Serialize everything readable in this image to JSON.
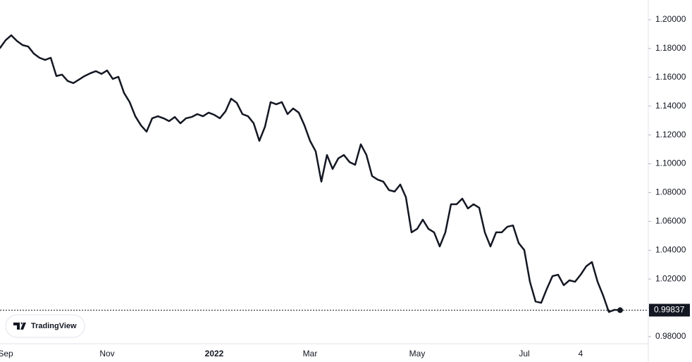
{
  "chart_data": {
    "type": "line",
    "watermark": "TradingView",
    "categories": [
      null,
      "Sep",
      null,
      null,
      null,
      null,
      null,
      null,
      null,
      null,
      null,
      null,
      null,
      null,
      null,
      null,
      null,
      null,
      null,
      "Nov",
      null,
      null,
      null,
      null,
      null,
      null,
      null,
      null,
      null,
      null,
      null,
      null,
      null,
      null,
      null,
      null,
      null,
      null,
      "2022",
      null,
      null,
      null,
      null,
      null,
      null,
      null,
      null,
      null,
      null,
      null,
      null,
      null,
      null,
      null,
      null,
      "Mar",
      null,
      null,
      null,
      null,
      null,
      null,
      null,
      null,
      null,
      null,
      null,
      null,
      null,
      null,
      null,
      null,
      null,
      null,
      "May",
      null,
      null,
      null,
      null,
      null,
      null,
      null,
      null,
      null,
      null,
      null,
      null,
      null,
      null,
      null,
      null,
      null,
      null,
      "Jul",
      null,
      null,
      null,
      null,
      null,
      null,
      null,
      null,
      null,
      "4",
      null,
      null,
      null,
      null,
      null,
      null,
      null
    ],
    "series": [
      {
        "color": "#131722",
        "values": [
          1.1804,
          1.1858,
          1.1892,
          1.1853,
          1.1824,
          1.1814,
          1.1765,
          1.1736,
          1.1721,
          1.1736,
          1.1609,
          1.1619,
          1.1575,
          1.156,
          1.1584,
          1.1609,
          1.1628,
          1.1643,
          1.1624,
          1.1648,
          1.1589,
          1.1604,
          1.1492,
          1.1428,
          1.133,
          1.1267,
          1.1223,
          1.1316,
          1.133,
          1.1316,
          1.1296,
          1.1325,
          1.1281,
          1.1316,
          1.1325,
          1.1345,
          1.133,
          1.1355,
          1.134,
          1.1316,
          1.1364,
          1.1452,
          1.1423,
          1.1345,
          1.133,
          1.1281,
          1.1159,
          1.1257,
          1.1428,
          1.1413,
          1.1428,
          1.1345,
          1.1384,
          1.1355,
          1.1267,
          1.1159,
          1.1086,
          1.0876,
          1.1061,
          1.0964,
          1.1037,
          1.1061,
          1.1012,
          1.0993,
          1.1135,
          1.1061,
          1.0915,
          1.089,
          1.0876,
          1.0817,
          1.0807,
          1.0856,
          1.0768,
          1.0524,
          1.0548,
          1.0612,
          1.0548,
          1.0524,
          1.0426,
          1.0524,
          1.0719,
          1.0719,
          1.0758,
          1.069,
          1.0719,
          1.0695,
          1.0524,
          1.0426,
          1.0524,
          1.0524,
          1.0563,
          1.0572,
          1.045,
          1.0401,
          1.0181,
          1.0044,
          1.0035,
          1.0132,
          1.022,
          1.023,
          1.0157,
          1.0191,
          1.0181,
          1.023,
          1.0289,
          1.0318,
          1.0181,
          1.0084,
          0.9971,
          0.9986,
          0.99837
        ]
      }
    ],
    "last_value": 0.99837,
    "ylim": [
      0.9751,
      1.2137
    ],
    "yticks": [
      {
        "value": 0.98,
        "label": "0.98000"
      },
      {
        "value": 1.0,
        "label": "1.00000"
      },
      {
        "value": 1.02,
        "label": "1.02000"
      },
      {
        "value": 1.04,
        "label": "1.04000"
      },
      {
        "value": 1.06,
        "label": "1.06000"
      },
      {
        "value": 1.08,
        "label": "1.08000"
      },
      {
        "value": 1.1,
        "label": "1.10000"
      },
      {
        "value": 1.12,
        "label": "1.12000"
      },
      {
        "value": 1.14,
        "label": "1.14000"
      },
      {
        "value": 1.16,
        "label": "1.16000"
      },
      {
        "value": 1.18,
        "label": "1.18000"
      },
      {
        "value": 1.2,
        "label": "1.20000"
      }
    ],
    "grid": false
  }
}
